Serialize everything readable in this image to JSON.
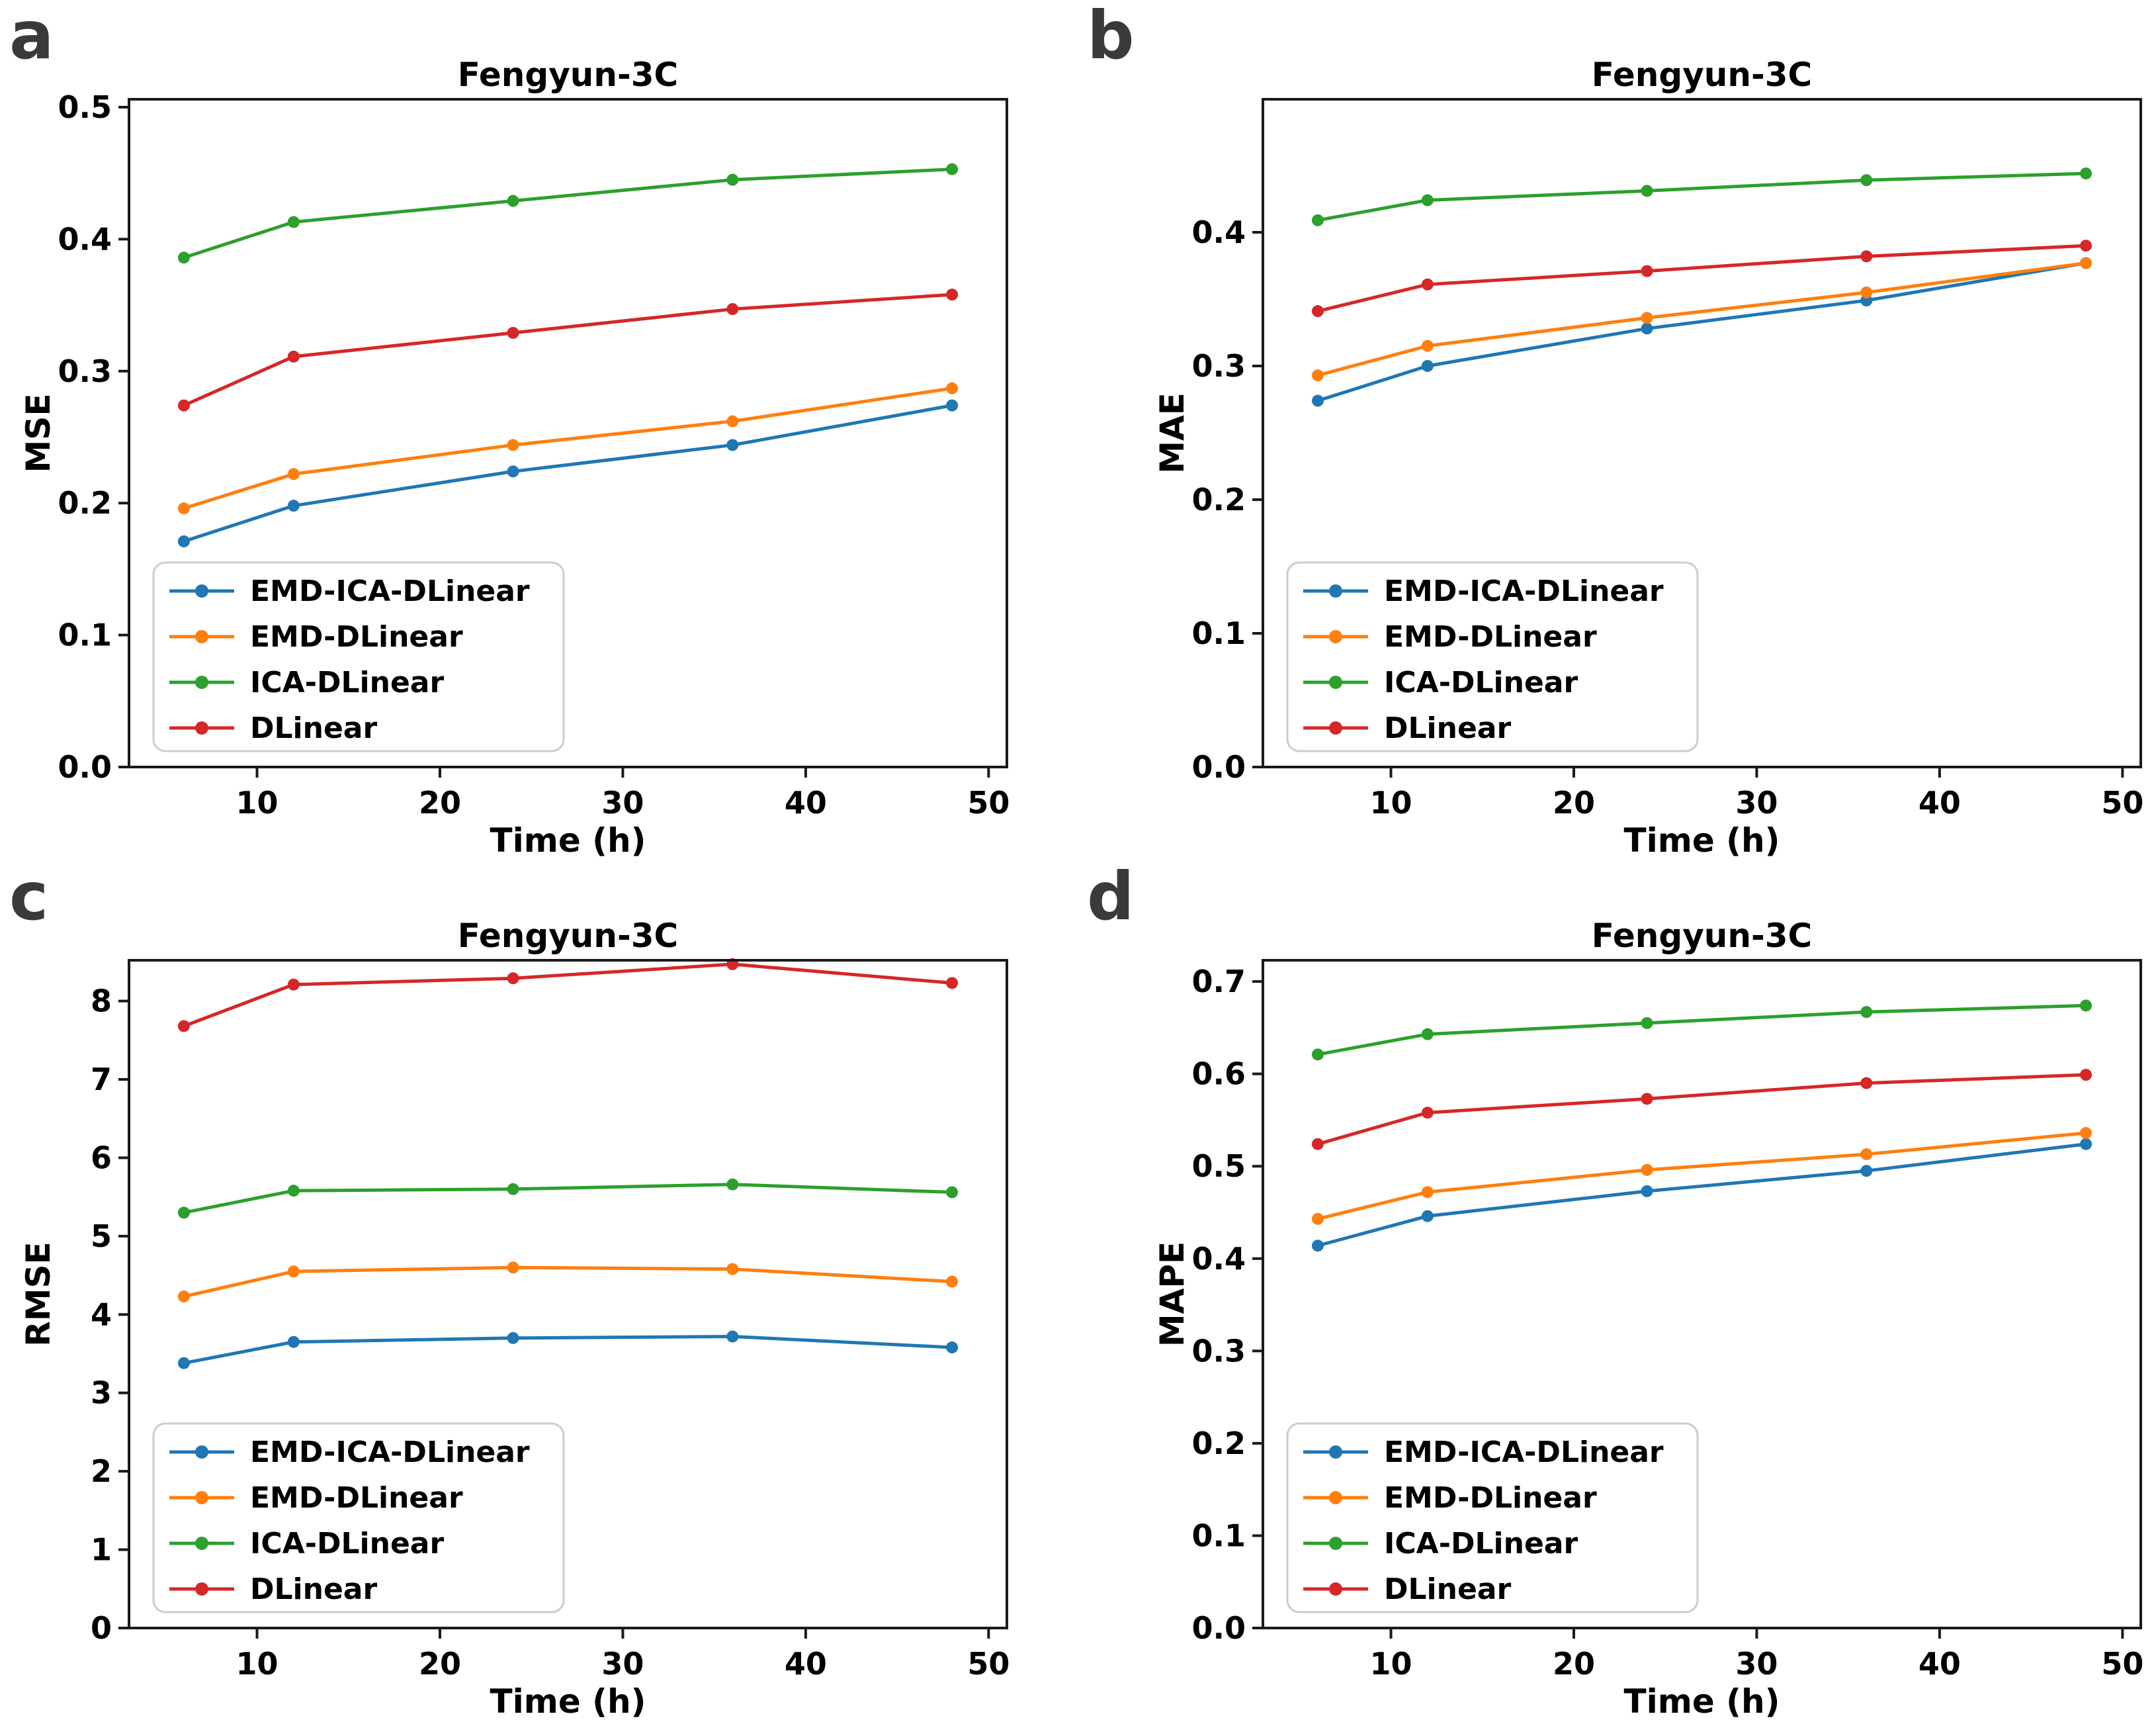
{
  "figure": {
    "background": "#ffffff",
    "text_color": "#000000",
    "panel_letter_color": "#3a3a3a",
    "spine_color": "#1a1a1a",
    "legend_border_color": "#cccccc"
  },
  "legend": {
    "position": "lower left",
    "entries": [
      "EMD-ICA-DLinear",
      "EMD-DLinear",
      "ICA-DLinear",
      "DLinear"
    ]
  },
  "series_colors": {
    "EMD-ICA-DLinear": "#1f77b4",
    "EMD-DLinear": "#ff7f0e",
    "ICA-DLinear": "#2ca02c",
    "DLinear": "#d62728"
  },
  "chart_data": [
    {
      "panel_label": "a",
      "type": "line",
      "title": "Fengyun-3C",
      "xlabel": "Time (h)",
      "ylabel": "MSE",
      "grid": false,
      "legend_position": "lower left",
      "x": [
        6,
        12,
        24,
        36,
        48
      ],
      "xticks": [
        10,
        20,
        30,
        40,
        50
      ],
      "xlim": [
        3,
        51
      ],
      "ylim": [
        0,
        0.506
      ],
      "yticks": [
        0.0,
        0.1,
        0.2,
        0.3,
        0.4,
        0.5
      ],
      "ytick_labels": [
        "0.0",
        "0.1",
        "0.2",
        "0.3",
        "0.4",
        "0.5"
      ],
      "series": [
        {
          "name": "EMD-ICA-DLinear",
          "color": "#1f77b4",
          "values": [
            0.171,
            0.198,
            0.224,
            0.244,
            0.274
          ]
        },
        {
          "name": "EMD-DLinear",
          "color": "#ff7f0e",
          "values": [
            0.196,
            0.222,
            0.244,
            0.262,
            0.287
          ]
        },
        {
          "name": "ICA-DLinear",
          "color": "#2ca02c",
          "values": [
            0.386,
            0.413,
            0.429,
            0.445,
            0.453
          ]
        },
        {
          "name": "DLinear",
          "color": "#d62728",
          "values": [
            0.274,
            0.311,
            0.329,
            0.347,
            0.358
          ]
        }
      ]
    },
    {
      "panel_label": "b",
      "type": "line",
      "title": "Fengyun-3C",
      "xlabel": "Time (h)",
      "ylabel": "MAE",
      "grid": false,
      "legend_position": "lower left",
      "x": [
        6,
        12,
        24,
        36,
        48
      ],
      "xticks": [
        10,
        20,
        30,
        40,
        50
      ],
      "xlim": [
        3,
        51
      ],
      "ylim": [
        0,
        0.4995
      ],
      "yticks": [
        0.0,
        0.1,
        0.2,
        0.3,
        0.4
      ],
      "ytick_labels": [
        "0.0",
        "0.1",
        "0.2",
        "0.3",
        "0.4"
      ],
      "series": [
        {
          "name": "EMD-ICA-DLinear",
          "color": "#1f77b4",
          "values": [
            0.274,
            0.3,
            0.328,
            0.349,
            0.377
          ]
        },
        {
          "name": "EMD-DLinear",
          "color": "#ff7f0e",
          "values": [
            0.293,
            0.315,
            0.336,
            0.355,
            0.377
          ]
        },
        {
          "name": "ICA-DLinear",
          "color": "#2ca02c",
          "values": [
            0.409,
            0.424,
            0.431,
            0.439,
            0.444
          ]
        },
        {
          "name": "DLinear",
          "color": "#d62728",
          "values": [
            0.341,
            0.361,
            0.371,
            0.382,
            0.39
          ]
        }
      ]
    },
    {
      "panel_label": "c",
      "type": "line",
      "title": "Fengyun-3C",
      "xlabel": "Time (h)",
      "ylabel": "RMSE",
      "grid": false,
      "legend_position": "lower left",
      "x": [
        6,
        12,
        24,
        36,
        48
      ],
      "xticks": [
        10,
        20,
        30,
        40,
        50
      ],
      "xlim": [
        3,
        51
      ],
      "ylim": [
        0,
        8.52
      ],
      "yticks": [
        0,
        1,
        2,
        3,
        4,
        5,
        6,
        7,
        8
      ],
      "ytick_labels": [
        "0",
        "1",
        "2",
        "3",
        "4",
        "5",
        "6",
        "7",
        "8"
      ],
      "series": [
        {
          "name": "EMD-ICA-DLinear",
          "color": "#1f77b4",
          "values": [
            3.38,
            3.65,
            3.7,
            3.72,
            3.58
          ]
        },
        {
          "name": "EMD-DLinear",
          "color": "#ff7f0e",
          "values": [
            4.23,
            4.55,
            4.6,
            4.58,
            4.42
          ]
        },
        {
          "name": "ICA-DLinear",
          "color": "#2ca02c",
          "values": [
            5.3,
            5.58,
            5.6,
            5.66,
            5.56
          ]
        },
        {
          "name": "DLinear",
          "color": "#d62728",
          "values": [
            7.68,
            8.21,
            8.29,
            8.47,
            8.23
          ]
        }
      ]
    },
    {
      "panel_label": "d",
      "type": "line",
      "title": "Fengyun-3C",
      "xlabel": "Time (h)",
      "ylabel": "MAPE",
      "grid": false,
      "legend_position": "lower left",
      "x": [
        6,
        12,
        24,
        36,
        48
      ],
      "xticks": [
        10,
        20,
        30,
        40,
        50
      ],
      "xlim": [
        3,
        51
      ],
      "ylim": [
        0,
        0.723
      ],
      "yticks": [
        0.0,
        0.1,
        0.2,
        0.3,
        0.4,
        0.5,
        0.6,
        0.7
      ],
      "ytick_labels": [
        "0.0",
        "0.1",
        "0.2",
        "0.3",
        "0.4",
        "0.5",
        "0.6",
        "0.7"
      ],
      "series": [
        {
          "name": "EMD-ICA-DLinear",
          "color": "#1f77b4",
          "values": [
            0.414,
            0.446,
            0.473,
            0.495,
            0.524
          ]
        },
        {
          "name": "EMD-DLinear",
          "color": "#ff7f0e",
          "values": [
            0.443,
            0.472,
            0.496,
            0.513,
            0.536
          ]
        },
        {
          "name": "ICA-DLinear",
          "color": "#2ca02c",
          "values": [
            0.621,
            0.643,
            0.655,
            0.667,
            0.674
          ]
        },
        {
          "name": "DLinear",
          "color": "#d62728",
          "values": [
            0.524,
            0.558,
            0.573,
            0.59,
            0.599
          ]
        }
      ]
    }
  ]
}
